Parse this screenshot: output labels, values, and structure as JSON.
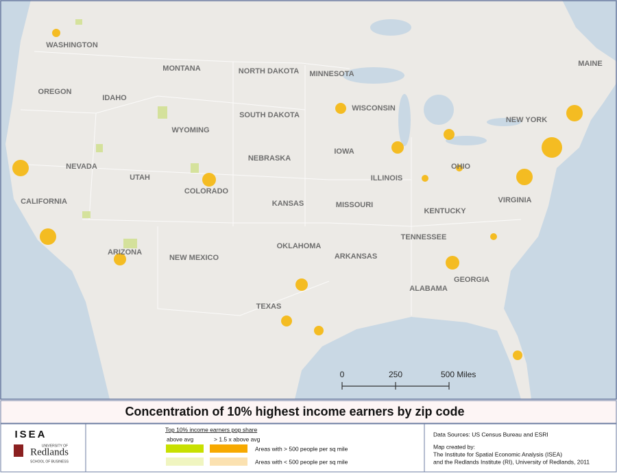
{
  "map": {
    "state_labels": [
      "WASHINGTON",
      "MONTANA",
      "NORTH DAKOTA",
      "MINNESOTA",
      "MAINE",
      "OREGON",
      "IDAHO",
      "WISCONSIN",
      "SOUTH DAKOTA",
      "WYOMING",
      "NEW YORK",
      "IOWA",
      "NEVADA",
      "NEBRASKA",
      "UTAH",
      "OHIO",
      "ILLINOIS",
      "COLORADO",
      "CALIFORNIA",
      "KANSAS",
      "MISSOURI",
      "VIRGINIA",
      "KENTUCKY",
      "TENNESSEE",
      "OKLAHOMA",
      "ARIZONA",
      "NEW MEXICO",
      "ARKANSAS",
      "GEORGIA",
      "ALABAMA",
      "TEXAS"
    ],
    "scale_bar": [
      "0",
      "250",
      "500 Miles"
    ]
  },
  "title": "Concentration of 10% highest income earners by zip code",
  "logos": {
    "isea": "ISEA",
    "university": "UNIVERSITY OF",
    "redlands": "Redlands",
    "school": "SCHOOL OF BUSINESS"
  },
  "legend": {
    "heading": "Top 10% income earners pop share",
    "columns": [
      "above avg",
      "> 1.5 x above avg"
    ],
    "rows": [
      "Areas with > 500 people per sq mile",
      "Areas with < 500 people per sq mile"
    ]
  },
  "credits": {
    "sources": "Data Sources: US Census Bureau and ESRI",
    "created": "Map created by:",
    "lines": [
      "The Institute for Spatial Economic Analysis (ISEA)",
      "and the Redlands Institute (RI), University of Redlands, 2011"
    ]
  }
}
